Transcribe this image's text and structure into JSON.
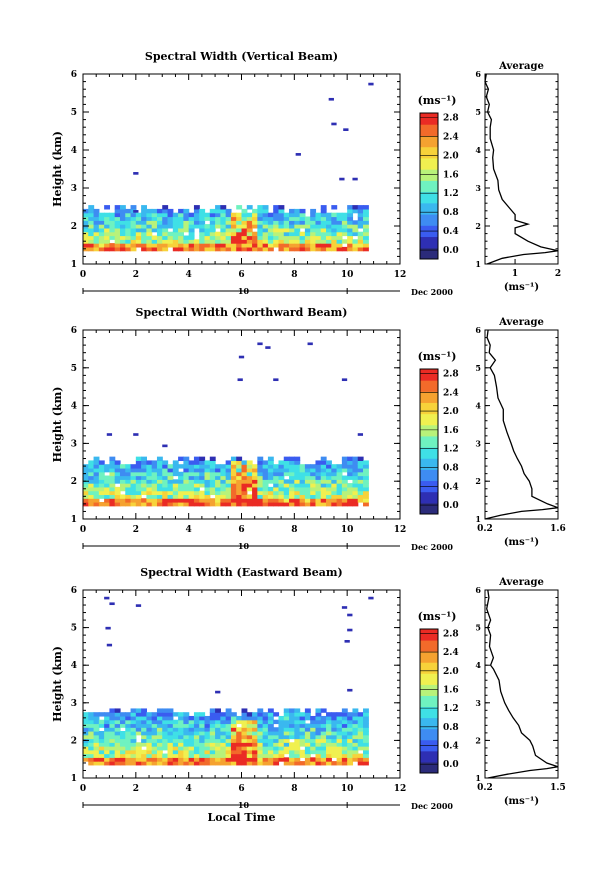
{
  "colorbar": {
    "unit_label": "(ms⁻¹)",
    "ticks": [
      "0.0",
      "0.4",
      "0.8",
      "1.2",
      "1.6",
      "2.0",
      "2.4",
      "2.8"
    ],
    "colors": [
      "#2b2b7a",
      "#2e2fb3",
      "#3a5cf0",
      "#3e8cf2",
      "#3ab8ef",
      "#3fe0e6",
      "#6ff2c0",
      "#b8f27a",
      "#f0f050",
      "#f7d23a",
      "#f5a230",
      "#f26a2a",
      "#ea2b24"
    ]
  },
  "shared": {
    "date_label": "Dec 2000",
    "date_day": "10",
    "xlabel_bottom": "Local Time",
    "x_ticks": [
      "0",
      "2",
      "4",
      "6",
      "8",
      "10",
      "12"
    ],
    "y_ticks": [
      "1",
      "2",
      "3",
      "4",
      "5",
      "6"
    ],
    "ylabel": "Height (km)",
    "avg_title": "Average",
    "avg_xlabel": "(ms⁻¹)"
  },
  "chart_data": [
    {
      "type": "heatmap",
      "title": "Spectral Width (Vertical Beam)",
      "xlabel": "",
      "ylabel": "Height (km)",
      "xlim": [
        0,
        12
      ],
      "ylim": [
        1,
        6
      ],
      "x_range_data": [
        0.0,
        10.8
      ],
      "y_range_data": [
        1.35,
        2.55
      ],
      "value_range": [
        0.0,
        3.0
      ],
      "high_value_region": {
        "x": [
          5.5,
          6.5
        ],
        "y": [
          1.5,
          2.5
        ]
      },
      "scattered_points": [
        [
          1.9,
          2.35
        ],
        [
          1.9,
          3.35
        ],
        [
          8.05,
          3.85
        ],
        [
          9.3,
          5.3
        ],
        [
          9.4,
          4.65
        ],
        [
          9.85,
          4.5
        ],
        [
          9.7,
          3.2
        ],
        [
          10.2,
          3.2
        ],
        [
          10.8,
          5.7
        ]
      ],
      "average_profile": {
        "title": "Average",
        "xlabel": "(ms⁻¹)",
        "x_ticks": [
          "1",
          "2"
        ],
        "xlim": [
          0.3,
          2.0
        ],
        "ylim": [
          1,
          6
        ],
        "points": [
          [
            0.35,
            1.0
          ],
          [
            0.7,
            1.15
          ],
          [
            1.2,
            1.25
          ],
          [
            1.7,
            1.3
          ],
          [
            2.0,
            1.35
          ],
          [
            1.6,
            1.45
          ],
          [
            1.3,
            1.6
          ],
          [
            1.0,
            1.8
          ],
          [
            1.0,
            1.95
          ],
          [
            1.3,
            2.05
          ],
          [
            1.0,
            2.15
          ],
          [
            1.0,
            2.3
          ],
          [
            0.85,
            2.5
          ],
          [
            0.7,
            2.7
          ],
          [
            0.62,
            2.95
          ],
          [
            0.6,
            3.2
          ],
          [
            0.5,
            3.5
          ],
          [
            0.48,
            3.8
          ],
          [
            0.5,
            4.0
          ],
          [
            0.42,
            4.3
          ],
          [
            0.42,
            4.6
          ],
          [
            0.45,
            4.8
          ],
          [
            0.36,
            5.0
          ],
          [
            0.4,
            5.2
          ],
          [
            0.33,
            5.4
          ],
          [
            0.38,
            5.6
          ],
          [
            0.3,
            5.8
          ],
          [
            0.33,
            6.0
          ]
        ]
      }
    },
    {
      "type": "heatmap",
      "title": "Spectral Width (Northward Beam)",
      "xlabel": "",
      "ylabel": "Height (km)",
      "xlim": [
        0,
        12
      ],
      "ylim": [
        1,
        6
      ],
      "x_range_data": [
        0.0,
        10.8
      ],
      "y_range_data": [
        1.35,
        2.65
      ],
      "value_range": [
        0.0,
        3.0
      ],
      "high_value_region": {
        "x": [
          5.5,
          6.5
        ],
        "y": [
          1.4,
          2.5
        ]
      },
      "scattered_points": [
        [
          0.9,
          3.2
        ],
        [
          1.9,
          3.2
        ],
        [
          3.0,
          2.9
        ],
        [
          5.9,
          5.25
        ],
        [
          5.85,
          4.65
        ],
        [
          6.6,
          5.6
        ],
        [
          6.9,
          5.5
        ],
        [
          7.2,
          4.65
        ],
        [
          8.5,
          5.6
        ],
        [
          9.8,
          4.65
        ],
        [
          10.4,
          3.2
        ]
      ],
      "average_profile": {
        "title": "Average",
        "xlabel": "(ms⁻¹)",
        "x_ticks": [
          "0.2",
          "1.6"
        ],
        "xlim": [
          0.2,
          1.6
        ],
        "ylim": [
          1,
          6
        ],
        "points": [
          [
            0.2,
            1.0
          ],
          [
            0.5,
            1.1
          ],
          [
            0.9,
            1.2
          ],
          [
            1.3,
            1.25
          ],
          [
            1.6,
            1.3
          ],
          [
            1.4,
            1.4
          ],
          [
            1.1,
            1.6
          ],
          [
            1.1,
            1.8
          ],
          [
            1.05,
            2.0
          ],
          [
            0.95,
            2.2
          ],
          [
            0.9,
            2.4
          ],
          [
            0.82,
            2.6
          ],
          [
            0.75,
            2.8
          ],
          [
            0.7,
            3.0
          ],
          [
            0.62,
            3.3
          ],
          [
            0.55,
            3.6
          ],
          [
            0.55,
            3.9
          ],
          [
            0.45,
            4.2
          ],
          [
            0.42,
            4.5
          ],
          [
            0.38,
            4.8
          ],
          [
            0.3,
            5.0
          ],
          [
            0.4,
            5.2
          ],
          [
            0.28,
            5.4
          ],
          [
            0.3,
            5.6
          ],
          [
            0.24,
            5.8
          ],
          [
            0.26,
            6.0
          ]
        ]
      }
    },
    {
      "type": "heatmap",
      "title": "Spectral Width (Eastward Beam)",
      "xlabel": "Local Time",
      "ylabel": "Height (km)",
      "xlim": [
        0,
        12
      ],
      "ylim": [
        1,
        6
      ],
      "x_range_data": [
        0.0,
        10.8
      ],
      "y_range_data": [
        1.35,
        2.85
      ],
      "value_range": [
        0.0,
        3.0
      ],
      "high_value_region": {
        "x": [
          5.5,
          6.6
        ],
        "y": [
          1.4,
          2.5
        ]
      },
      "scattered_points": [
        [
          0.8,
          5.75
        ],
        [
          1.0,
          5.6
        ],
        [
          0.85,
          4.95
        ],
        [
          0.9,
          4.5
        ],
        [
          2.0,
          5.55
        ],
        [
          5.0,
          3.25
        ],
        [
          9.8,
          5.5
        ],
        [
          10.0,
          5.3
        ],
        [
          10.0,
          4.9
        ],
        [
          9.9,
          4.6
        ],
        [
          10.0,
          3.3
        ],
        [
          10.8,
          5.75
        ]
      ],
      "average_profile": {
        "title": "Average",
        "xlabel": "(ms⁻¹)",
        "x_ticks": [
          "0.2",
          "1.5"
        ],
        "xlim": [
          0.2,
          1.5
        ],
        "ylim": [
          1,
          6
        ],
        "points": [
          [
            0.25,
            1.0
          ],
          [
            0.6,
            1.1
          ],
          [
            1.0,
            1.2
          ],
          [
            1.3,
            1.25
          ],
          [
            1.5,
            1.3
          ],
          [
            1.3,
            1.4
          ],
          [
            1.1,
            1.6
          ],
          [
            1.05,
            1.85
          ],
          [
            1.0,
            2.0
          ],
          [
            0.85,
            2.2
          ],
          [
            0.8,
            2.4
          ],
          [
            0.7,
            2.6
          ],
          [
            0.62,
            2.8
          ],
          [
            0.55,
            3.0
          ],
          [
            0.48,
            3.3
          ],
          [
            0.45,
            3.6
          ],
          [
            0.35,
            3.9
          ],
          [
            0.3,
            4.0
          ],
          [
            0.35,
            4.2
          ],
          [
            0.28,
            4.5
          ],
          [
            0.3,
            4.8
          ],
          [
            0.25,
            5.0
          ],
          [
            0.3,
            5.2
          ],
          [
            0.23,
            5.5
          ],
          [
            0.27,
            5.8
          ],
          [
            0.25,
            6.0
          ]
        ]
      }
    }
  ]
}
